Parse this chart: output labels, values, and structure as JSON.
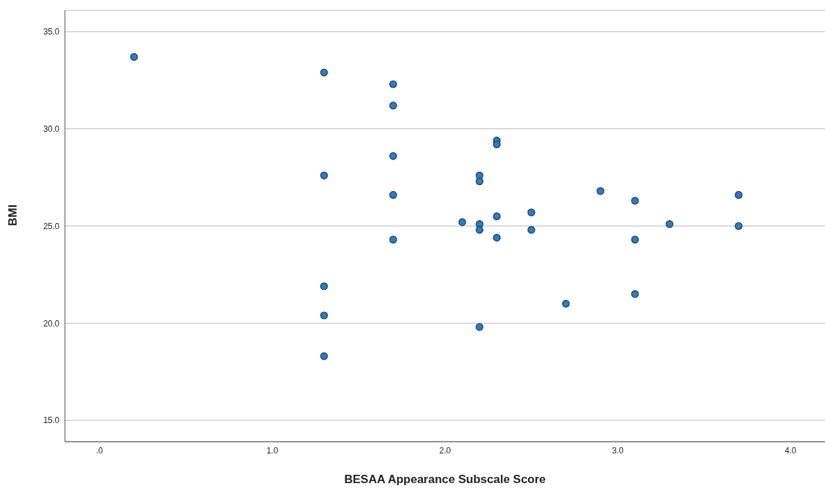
{
  "chart_data": {
    "type": "scatter",
    "xlabel": "BESAA Appearance Subscale Score",
    "ylabel": "BMI",
    "x": [
      0.2,
      1.3,
      1.3,
      1.3,
      1.3,
      1.3,
      1.7,
      1.7,
      1.7,
      1.7,
      1.7,
      2.1,
      2.2,
      2.2,
      2.2,
      2.2,
      2.2,
      2.3,
      2.3,
      2.3,
      2.3,
      2.5,
      2.5,
      2.7,
      2.9,
      3.1,
      3.1,
      3.1,
      3.3,
      3.7,
      3.7
    ],
    "values": [
      33.7,
      32.9,
      27.6,
      21.9,
      20.4,
      18.3,
      32.3,
      31.2,
      28.6,
      26.6,
      24.3,
      25.2,
      27.6,
      27.3,
      25.1,
      24.8,
      19.8,
      29.4,
      29.2,
      25.5,
      24.4,
      25.7,
      24.8,
      21.0,
      26.8,
      26.3,
      24.3,
      21.5,
      25.1,
      26.6,
      25.0
    ],
    "color": "#2e7cc0",
    "marker": "circle",
    "grid": "y",
    "xlim": [
      -0.2,
      4.2
    ],
    "xticks": [
      {
        "value": 0,
        "label": ".0"
      },
      {
        "value": 1,
        "label": "1.0"
      },
      {
        "value": 2,
        "label": "2.0"
      },
      {
        "value": 3,
        "label": "3.0"
      },
      {
        "value": 4,
        "label": "4.0"
      }
    ],
    "ylim": [
      13.9,
      36.1
    ],
    "yticks": [
      {
        "value": 15,
        "label": "15.0"
      },
      {
        "value": 20,
        "label": "20.0"
      },
      {
        "value": 25,
        "label": "25.0"
      },
      {
        "value": 30,
        "label": "30.0"
      },
      {
        "value": 35,
        "label": "35.0"
      }
    ]
  }
}
